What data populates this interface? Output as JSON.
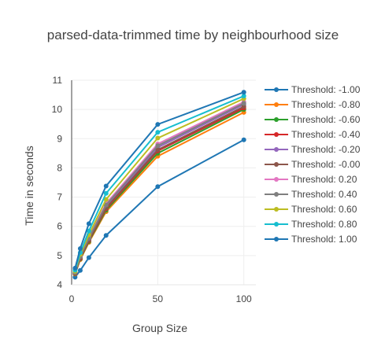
{
  "chart_data": {
    "type": "line",
    "title": "parsed-data-trimmed time by neighbourhood size",
    "xlabel": "Group Size",
    "ylabel": "Time in seconds",
    "xlim": [
      0,
      107
    ],
    "ylim": [
      4,
      11
    ],
    "xticks": [
      0,
      50,
      100
    ],
    "yticks": [
      4,
      5,
      6,
      7,
      8,
      9,
      10,
      11
    ],
    "grid": true,
    "legend_position": "right",
    "x": [
      2,
      5,
      10,
      20,
      50,
      100
    ],
    "series": [
      {
        "name": "Threshold: -1.00",
        "color": "#1f77b4",
        "values": [
          4.26,
          4.49,
          4.93,
          5.69,
          7.36,
          8.96
        ]
      },
      {
        "name": "Threshold: -0.80",
        "color": "#ff7f0e",
        "values": [
          4.37,
          4.86,
          5.45,
          6.5,
          8.4,
          9.9
        ]
      },
      {
        "name": "Threshold: -0.60",
        "color": "#2ca02c",
        "values": [
          4.38,
          4.88,
          5.48,
          6.55,
          8.5,
          10.0
        ]
      },
      {
        "name": "Threshold: -0.40",
        "color": "#d62728",
        "values": [
          4.39,
          4.9,
          5.51,
          6.6,
          8.58,
          10.05
        ]
      },
      {
        "name": "Threshold: -0.20",
        "color": "#9467bd",
        "values": [
          4.41,
          4.94,
          5.56,
          6.68,
          8.7,
          10.17
        ]
      },
      {
        "name": "Threshold: -0.00",
        "color": "#8c564b",
        "values": [
          4.4,
          4.92,
          5.53,
          6.63,
          8.62,
          10.1
        ]
      },
      {
        "name": "Threshold: 0.20",
        "color": "#e377c2",
        "values": [
          4.43,
          4.98,
          5.62,
          6.78,
          8.82,
          10.26
        ]
      },
      {
        "name": "Threshold: 0.40",
        "color": "#7f7f7f",
        "values": [
          4.42,
          4.96,
          5.59,
          6.73,
          8.76,
          10.21
        ]
      },
      {
        "name": "Threshold: 0.60",
        "color": "#bcbd22",
        "values": [
          4.46,
          5.04,
          5.71,
          6.92,
          9.02,
          10.37
        ]
      },
      {
        "name": "Threshold: 0.80",
        "color": "#17becf",
        "values": [
          4.5,
          5.1,
          5.84,
          7.13,
          9.22,
          10.46
        ]
      },
      {
        "name": "Threshold: 1.00",
        "color": "#1f77b4",
        "values": [
          4.57,
          5.24,
          6.09,
          7.38,
          9.49,
          10.59
        ]
      }
    ]
  }
}
